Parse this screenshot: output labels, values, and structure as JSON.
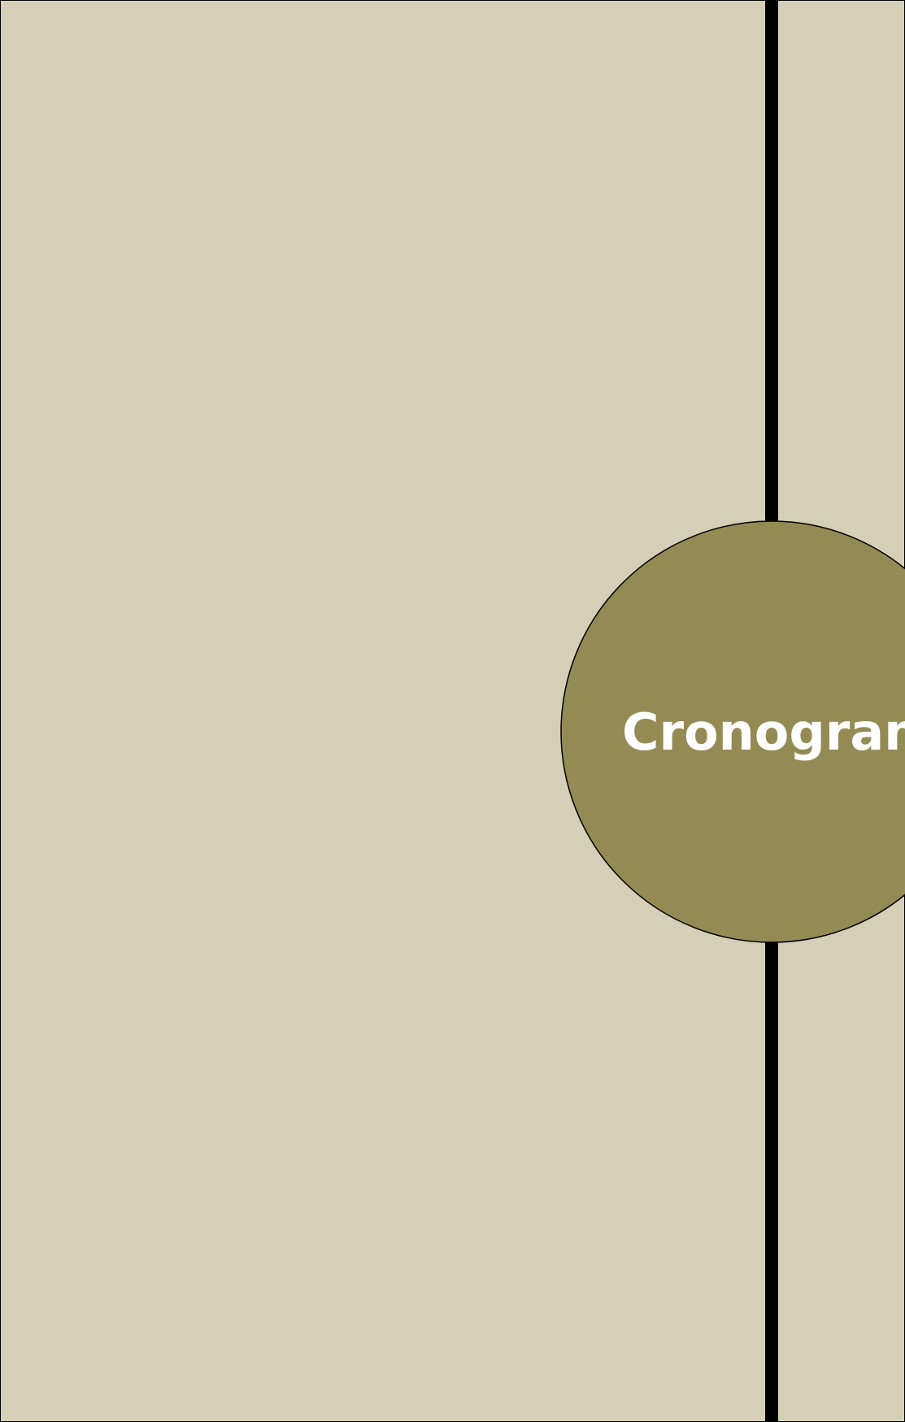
{
  "title": "Cronogram"
}
